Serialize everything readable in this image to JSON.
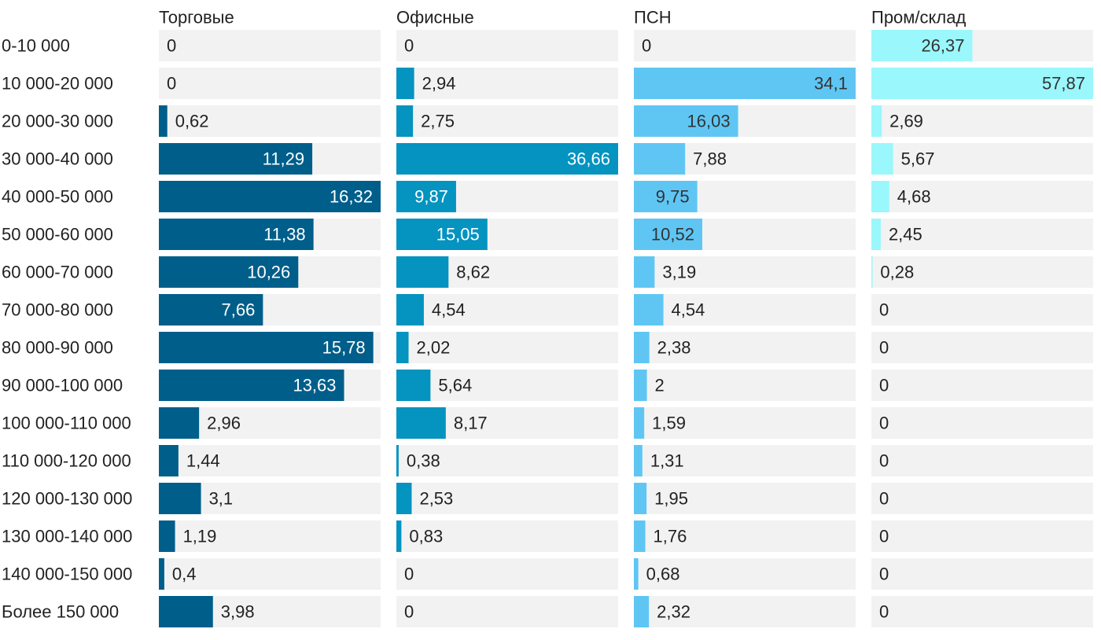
{
  "chart_data": {
    "type": "bar",
    "orientation": "horizontal",
    "layout": "small-multiples",
    "title": "",
    "categories": [
      "0-10 000",
      "10 000-20 000",
      "20 000-30 000",
      "30 000-40 000",
      "40 000-50 000",
      "50 000-60 000",
      "60 000-70 000",
      "70 000-80 000",
      "80 000-90 000",
      "90 000-100 000",
      "100 000-110 000",
      "110 000-120 000",
      "120 000-130 000",
      "130 000-140 000",
      "140 000-150 000",
      "Более 150 000"
    ],
    "series": [
      {
        "name": "Торговые",
        "color": "#005e8a",
        "values": [
          0,
          0,
          0.62,
          11.29,
          16.32,
          11.38,
          10.26,
          7.66,
          15.78,
          13.63,
          2.96,
          1.44,
          3.1,
          1.19,
          0.4,
          3.98
        ]
      },
      {
        "name": "Офисные",
        "color": "#0593c0",
        "values": [
          0,
          2.94,
          2.75,
          36.66,
          9.87,
          15.05,
          8.62,
          4.54,
          2.02,
          5.64,
          8.17,
          0.38,
          2.53,
          0.83,
          0,
          0
        ]
      },
      {
        "name": "ПСН",
        "color": "#5fc6f4",
        "values": [
          0,
          34.1,
          16.03,
          7.88,
          9.75,
          10.52,
          3.19,
          4.54,
          2.38,
          2,
          1.59,
          1.31,
          1.95,
          1.76,
          0.68,
          2.32
        ]
      },
      {
        "name": "Пром/склад",
        "color": "#9af7fb",
        "values": [
          26.37,
          57.87,
          2.69,
          5.67,
          4.68,
          2.45,
          0.28,
          0,
          0,
          0,
          0,
          0,
          0,
          0,
          0,
          0
        ]
      }
    ],
    "track_color": "#f2f2f2",
    "decimal_separator": ","
  }
}
